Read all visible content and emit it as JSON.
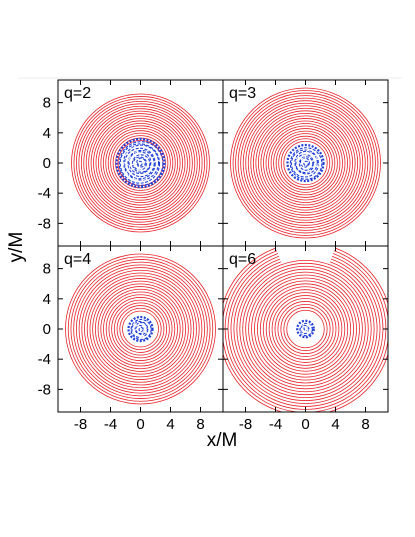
{
  "chart_data": {
    "type": "line",
    "xlabel": "x/M",
    "ylabel": "y/M",
    "xlim": [
      -11,
      11
    ],
    "ylim": [
      -11,
      11
    ],
    "x_ticks": [
      -8,
      -4,
      0,
      4,
      8
    ],
    "y_ticks": [
      8,
      4,
      0,
      -4,
      -8
    ],
    "grid": false,
    "colors": {
      "outer": "#e8232a",
      "inner": "#1f3fd8"
    },
    "panels": [
      {
        "label": "q=2",
        "outer_r": [
          3.0,
          9.2
        ],
        "outer_count": 20,
        "inner_r": 3.2,
        "cut_top": false
      },
      {
        "label": "q=3",
        "outer_r": [
          2.9,
          10.0
        ],
        "outer_count": 22,
        "inner_r": 2.4,
        "cut_top": false
      },
      {
        "label": "q=4",
        "outer_r": [
          2.4,
          10.0
        ],
        "outer_count": 22,
        "inner_r": 1.6,
        "cut_top": false
      },
      {
        "label": "q=6",
        "outer_r": [
          2.5,
          11.5
        ],
        "outer_count": 24,
        "inner_r": 1.1,
        "cut_top": true
      }
    ]
  }
}
